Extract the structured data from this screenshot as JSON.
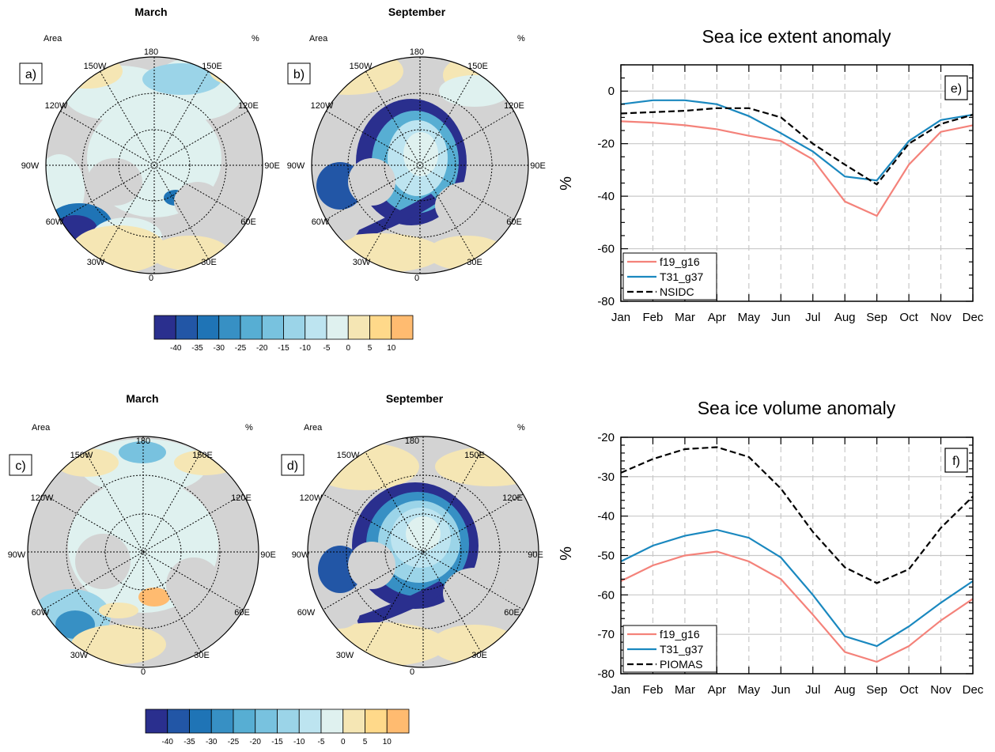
{
  "maps": [
    {
      "id": "a",
      "panel_label": "a)",
      "title": "March",
      "left_label": "Area",
      "right_label": "%"
    },
    {
      "id": "b",
      "panel_label": "b)",
      "title": "September",
      "left_label": "Area",
      "right_label": "%"
    },
    {
      "id": "c",
      "panel_label": "c)",
      "title": "March",
      "left_label": "Area",
      "right_label": "%"
    },
    {
      "id": "d",
      "panel_label": "d)",
      "title": "September",
      "left_label": "Area",
      "right_label": "%"
    }
  ],
  "longitude_labels": [
    "180",
    "150E",
    "120E",
    "90E",
    "60E",
    "30E",
    "0",
    "30W",
    "60W",
    "90W",
    "120W",
    "150W"
  ],
  "colorbar": {
    "colors": [
      "#2a2f8e",
      "#2256a6",
      "#1f74b6",
      "#3790c4",
      "#57aed3",
      "#78c2df",
      "#9bd4e8",
      "#bde4f0",
      "#dff1ef",
      "#f5e6b4",
      "#ffd98a",
      "#ffbb70"
    ],
    "labels": [
      "-40",
      "-35",
      "-30",
      "-25",
      "-20",
      "-15",
      "-10",
      "-5",
      "0",
      "5",
      "10"
    ]
  },
  "colors": {
    "f19_g16": "#f4827a",
    "T31_g37": "#1a88bf",
    "obs": "#000000",
    "land": "#d3d3d3",
    "ocean": "#dff1ef",
    "gridline": "#c8c8c8"
  },
  "chart_data": [
    {
      "type": "line",
      "panel_label": "e)",
      "title": "Sea ice extent anomaly",
      "ylabel": "%",
      "xlabel": "",
      "categories": [
        "Jan",
        "Feb",
        "Mar",
        "Apr",
        "May",
        "Jun",
        "Jul",
        "Aug",
        "Sep",
        "Oct",
        "Nov",
        "Dec"
      ],
      "ylim": [
        -80,
        10
      ],
      "yticks": [
        0,
        -20,
        -40,
        -60,
        -80
      ],
      "legend_position": "bottom-left",
      "grid": true,
      "series": [
        {
          "name": "f19_g16",
          "style": "solid",
          "values": [
            -11.5,
            -12,
            -13,
            -14.5,
            -17,
            -19,
            -26,
            -42,
            -47.5,
            -28,
            -15.5,
            -13
          ]
        },
        {
          "name": "T31_g37",
          "style": "solid",
          "values": [
            -5,
            -3.5,
            -3.5,
            -5,
            -9.5,
            -16,
            -23,
            -32.5,
            -34,
            -19,
            -11,
            -9
          ]
        },
        {
          "name": "NSIDC",
          "style": "dashed",
          "values": [
            -8.5,
            -8,
            -7.5,
            -6.5,
            -6.5,
            -10,
            -20,
            -28,
            -35.5,
            -20,
            -12.5,
            -9
          ]
        }
      ]
    },
    {
      "type": "line",
      "panel_label": "f)",
      "title": "Sea ice volume anomaly",
      "ylabel": "%",
      "xlabel": "",
      "categories": [
        "Jan",
        "Feb",
        "Mar",
        "Apr",
        "May",
        "Jun",
        "Jul",
        "Aug",
        "Sep",
        "Oct",
        "Nov",
        "Dec"
      ],
      "ylim": [
        -80,
        -20
      ],
      "yticks": [
        -20,
        -30,
        -40,
        -50,
        -60,
        -70,
        -80
      ],
      "legend_position": "bottom-left",
      "grid": true,
      "series": [
        {
          "name": "f19_g16",
          "style": "solid",
          "values": [
            -56.5,
            -52.5,
            -50,
            -49,
            -51.5,
            -56,
            -65,
            -74.5,
            -77,
            -73,
            -66.5,
            -61
          ]
        },
        {
          "name": "T31_g37",
          "style": "solid",
          "values": [
            -51.5,
            -47.5,
            -45,
            -43.5,
            -45.5,
            -50.5,
            -60,
            -70.5,
            -73,
            -68,
            -62,
            -56.5
          ]
        },
        {
          "name": "PIOMAS",
          "style": "dashed",
          "values": [
            -29,
            -25.5,
            -23,
            -22.5,
            -25,
            -33,
            -44,
            -53,
            -57,
            -53.5,
            -43,
            -35
          ]
        }
      ]
    }
  ]
}
